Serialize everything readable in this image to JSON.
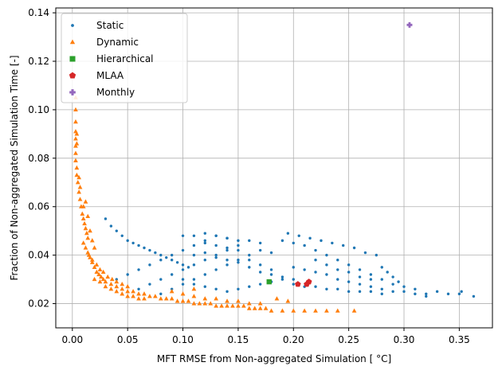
{
  "chart_data": {
    "type": "scatter",
    "xlabel": "MFT RMSE from Non-aggregated Simulation [$^\\circ$C]",
    "xlabel_display": "MFT RMSE from Non-aggregated Simulation [ °C]",
    "ylabel": "Fraction of Non-aggregated Simulation Time [-]",
    "xlim": [
      -0.015,
      0.38
    ],
    "ylim": [
      0.01,
      0.142
    ],
    "xticks": [
      0.0,
      0.05,
      0.1,
      0.15,
      0.2,
      0.25,
      0.3,
      0.35
    ],
    "xtick_labels": [
      "0.00",
      "0.05",
      "0.10",
      "0.15",
      "0.20",
      "0.25",
      "0.30",
      "0.35"
    ],
    "yticks": [
      0.02,
      0.04,
      0.06,
      0.08,
      0.1,
      0.12,
      0.14
    ],
    "ytick_labels": [
      "0.02",
      "0.04",
      "0.06",
      "0.08",
      "0.10",
      "0.12",
      "0.14"
    ],
    "grid": true,
    "legend_position": "top-left",
    "series": [
      {
        "name": "Static",
        "marker": "circle",
        "color": "#1f77b4",
        "points": [
          [
            0.03,
            0.055
          ],
          [
            0.035,
            0.052
          ],
          [
            0.04,
            0.05
          ],
          [
            0.045,
            0.048
          ],
          [
            0.05,
            0.046
          ],
          [
            0.055,
            0.045
          ],
          [
            0.06,
            0.044
          ],
          [
            0.065,
            0.043
          ],
          [
            0.07,
            0.042
          ],
          [
            0.075,
            0.041
          ],
          [
            0.08,
            0.04
          ],
          [
            0.085,
            0.039
          ],
          [
            0.09,
            0.038
          ],
          [
            0.095,
            0.037
          ],
          [
            0.1,
            0.036
          ],
          [
            0.105,
            0.035
          ],
          [
            0.04,
            0.03
          ],
          [
            0.05,
            0.032
          ],
          [
            0.06,
            0.034
          ],
          [
            0.07,
            0.036
          ],
          [
            0.08,
            0.038
          ],
          [
            0.09,
            0.04
          ],
          [
            0.1,
            0.042
          ],
          [
            0.11,
            0.044
          ],
          [
            0.12,
            0.046
          ],
          [
            0.13,
            0.048
          ],
          [
            0.14,
            0.047
          ],
          [
            0.15,
            0.046
          ],
          [
            0.06,
            0.026
          ],
          [
            0.07,
            0.028
          ],
          [
            0.08,
            0.03
          ],
          [
            0.09,
            0.032
          ],
          [
            0.1,
            0.034
          ],
          [
            0.11,
            0.036
          ],
          [
            0.12,
            0.038
          ],
          [
            0.13,
            0.04
          ],
          [
            0.14,
            0.042
          ],
          [
            0.15,
            0.044
          ],
          [
            0.16,
            0.046
          ],
          [
            0.17,
            0.045
          ],
          [
            0.08,
            0.024
          ],
          [
            0.09,
            0.026
          ],
          [
            0.1,
            0.028
          ],
          [
            0.11,
            0.03
          ],
          [
            0.12,
            0.032
          ],
          [
            0.13,
            0.034
          ],
          [
            0.14,
            0.036
          ],
          [
            0.15,
            0.038
          ],
          [
            0.16,
            0.04
          ],
          [
            0.17,
            0.042
          ],
          [
            0.18,
            0.041
          ],
          [
            0.1,
            0.048
          ],
          [
            0.11,
            0.048
          ],
          [
            0.12,
            0.049
          ],
          [
            0.13,
            0.048
          ],
          [
            0.14,
            0.047
          ],
          [
            0.12,
            0.045
          ],
          [
            0.13,
            0.044
          ],
          [
            0.14,
            0.043
          ],
          [
            0.15,
            0.042
          ],
          [
            0.16,
            0.038
          ],
          [
            0.17,
            0.036
          ],
          [
            0.18,
            0.034
          ],
          [
            0.11,
            0.04
          ],
          [
            0.12,
            0.041
          ],
          [
            0.13,
            0.039
          ],
          [
            0.14,
            0.038
          ],
          [
            0.15,
            0.037
          ],
          [
            0.16,
            0.035
          ],
          [
            0.17,
            0.033
          ],
          [
            0.18,
            0.032
          ],
          [
            0.19,
            0.031
          ],
          [
            0.2,
            0.03
          ],
          [
            0.1,
            0.03
          ],
          [
            0.11,
            0.028
          ],
          [
            0.12,
            0.027
          ],
          [
            0.13,
            0.026
          ],
          [
            0.14,
            0.025
          ],
          [
            0.15,
            0.026
          ],
          [
            0.16,
            0.027
          ],
          [
            0.17,
            0.028
          ],
          [
            0.18,
            0.029
          ],
          [
            0.19,
            0.03
          ],
          [
            0.2,
            0.045
          ],
          [
            0.21,
            0.044
          ],
          [
            0.22,
            0.042
          ],
          [
            0.23,
            0.04
          ],
          [
            0.24,
            0.038
          ],
          [
            0.25,
            0.036
          ],
          [
            0.26,
            0.034
          ],
          [
            0.27,
            0.032
          ],
          [
            0.28,
            0.03
          ],
          [
            0.29,
            0.028
          ],
          [
            0.2,
            0.035
          ],
          [
            0.21,
            0.034
          ],
          [
            0.22,
            0.033
          ],
          [
            0.23,
            0.032
          ],
          [
            0.24,
            0.03
          ],
          [
            0.25,
            0.029
          ],
          [
            0.26,
            0.028
          ],
          [
            0.27,
            0.027
          ],
          [
            0.28,
            0.026
          ],
          [
            0.29,
            0.025
          ],
          [
            0.2,
            0.028
          ],
          [
            0.21,
            0.027
          ],
          [
            0.22,
            0.027
          ],
          [
            0.23,
            0.026
          ],
          [
            0.24,
            0.026
          ],
          [
            0.25,
            0.025
          ],
          [
            0.26,
            0.025
          ],
          [
            0.27,
            0.025
          ],
          [
            0.28,
            0.024
          ],
          [
            0.3,
            0.025
          ],
          [
            0.31,
            0.024
          ],
          [
            0.32,
            0.024
          ],
          [
            0.33,
            0.025
          ],
          [
            0.34,
            0.024
          ],
          [
            0.35,
            0.024
          ],
          [
            0.352,
            0.025
          ],
          [
            0.363,
            0.023
          ],
          [
            0.3,
            0.027
          ],
          [
            0.31,
            0.026
          ],
          [
            0.32,
            0.023
          ],
          [
            0.19,
            0.046
          ],
          [
            0.195,
            0.049
          ],
          [
            0.205,
            0.048
          ],
          [
            0.215,
            0.047
          ],
          [
            0.225,
            0.046
          ],
          [
            0.235,
            0.045
          ],
          [
            0.245,
            0.044
          ],
          [
            0.255,
            0.043
          ],
          [
            0.265,
            0.041
          ],
          [
            0.275,
            0.04
          ],
          [
            0.28,
            0.035
          ],
          [
            0.285,
            0.033
          ],
          [
            0.29,
            0.031
          ],
          [
            0.295,
            0.029
          ],
          [
            0.27,
            0.03
          ],
          [
            0.26,
            0.031
          ],
          [
            0.25,
            0.033
          ],
          [
            0.24,
            0.034
          ],
          [
            0.23,
            0.036
          ],
          [
            0.22,
            0.038
          ]
        ]
      },
      {
        "name": "Dynamic",
        "marker": "triangle",
        "color": "#ff7f0e",
        "points": [
          [
            0.003,
            0.105
          ],
          [
            0.003,
            0.1
          ],
          [
            0.003,
            0.095
          ],
          [
            0.003,
            0.091
          ],
          [
            0.003,
            0.088
          ],
          [
            0.003,
            0.085
          ],
          [
            0.003,
            0.082
          ],
          [
            0.003,
            0.079
          ],
          [
            0.004,
            0.076
          ],
          [
            0.004,
            0.073
          ],
          [
            0.005,
            0.07
          ],
          [
            0.006,
            0.066
          ],
          [
            0.007,
            0.063
          ],
          [
            0.008,
            0.06
          ],
          [
            0.009,
            0.057
          ],
          [
            0.01,
            0.055
          ],
          [
            0.011,
            0.053
          ],
          [
            0.012,
            0.051
          ],
          [
            0.013,
            0.049
          ],
          [
            0.014,
            0.047
          ],
          [
            0.01,
            0.045
          ],
          [
            0.012,
            0.043
          ],
          [
            0.014,
            0.041
          ],
          [
            0.016,
            0.039
          ],
          [
            0.018,
            0.037
          ],
          [
            0.02,
            0.035
          ],
          [
            0.022,
            0.033
          ],
          [
            0.024,
            0.032
          ],
          [
            0.026,
            0.031
          ],
          [
            0.028,
            0.03
          ],
          [
            0.03,
            0.029
          ],
          [
            0.035,
            0.028
          ],
          [
            0.04,
            0.027
          ],
          [
            0.045,
            0.026
          ],
          [
            0.05,
            0.025
          ],
          [
            0.055,
            0.025
          ],
          [
            0.06,
            0.024
          ],
          [
            0.065,
            0.024
          ],
          [
            0.07,
            0.023
          ],
          [
            0.075,
            0.023
          ],
          [
            0.08,
            0.022
          ],
          [
            0.085,
            0.022
          ],
          [
            0.09,
            0.022
          ],
          [
            0.095,
            0.021
          ],
          [
            0.1,
            0.021
          ],
          [
            0.105,
            0.021
          ],
          [
            0.11,
            0.02
          ],
          [
            0.115,
            0.02
          ],
          [
            0.12,
            0.02
          ],
          [
            0.125,
            0.02
          ],
          [
            0.13,
            0.019
          ],
          [
            0.135,
            0.019
          ],
          [
            0.14,
            0.019
          ],
          [
            0.145,
            0.019
          ],
          [
            0.15,
            0.019
          ],
          [
            0.155,
            0.019
          ],
          [
            0.16,
            0.018
          ],
          [
            0.165,
            0.018
          ],
          [
            0.17,
            0.018
          ],
          [
            0.175,
            0.018
          ],
          [
            0.015,
            0.04
          ],
          [
            0.018,
            0.038
          ],
          [
            0.022,
            0.036
          ],
          [
            0.025,
            0.034
          ],
          [
            0.028,
            0.033
          ],
          [
            0.032,
            0.031
          ],
          [
            0.036,
            0.03
          ],
          [
            0.04,
            0.029
          ],
          [
            0.045,
            0.028
          ],
          [
            0.05,
            0.027
          ],
          [
            0.02,
            0.03
          ],
          [
            0.025,
            0.029
          ],
          [
            0.03,
            0.027
          ],
          [
            0.035,
            0.026
          ],
          [
            0.04,
            0.025
          ],
          [
            0.045,
            0.024
          ],
          [
            0.05,
            0.023
          ],
          [
            0.055,
            0.023
          ],
          [
            0.06,
            0.022
          ],
          [
            0.065,
            0.022
          ],
          [
            0.01,
            0.06
          ],
          [
            0.012,
            0.062
          ],
          [
            0.014,
            0.056
          ],
          [
            0.016,
            0.05
          ],
          [
            0.018,
            0.046
          ],
          [
            0.02,
            0.043
          ],
          [
            0.007,
            0.068
          ],
          [
            0.006,
            0.072
          ],
          [
            0.004,
            0.086
          ],
          [
            0.004,
            0.09
          ],
          [
            0.18,
            0.017
          ],
          [
            0.19,
            0.017
          ],
          [
            0.2,
            0.017
          ],
          [
            0.21,
            0.017
          ],
          [
            0.22,
            0.017
          ],
          [
            0.23,
            0.017
          ],
          [
            0.24,
            0.017
          ],
          [
            0.255,
            0.017
          ],
          [
            0.185,
            0.022
          ],
          [
            0.195,
            0.021
          ],
          [
            0.09,
            0.025
          ],
          [
            0.1,
            0.024
          ],
          [
            0.11,
            0.023
          ],
          [
            0.12,
            0.022
          ],
          [
            0.13,
            0.022
          ],
          [
            0.14,
            0.021
          ],
          [
            0.15,
            0.021
          ],
          [
            0.16,
            0.02
          ],
          [
            0.17,
            0.02
          ],
          [
            0.11,
            0.026
          ]
        ]
      },
      {
        "name": "Hierarchical",
        "marker": "square",
        "color": "#2ca02c",
        "points": [
          [
            0.178,
            0.029
          ]
        ]
      },
      {
        "name": "MLAA",
        "marker": "pentagon",
        "color": "#d62728",
        "points": [
          [
            0.204,
            0.028
          ],
          [
            0.212,
            0.028
          ],
          [
            0.214,
            0.029
          ]
        ]
      },
      {
        "name": "Monthly",
        "marker": "plus",
        "color": "#9467bd",
        "points": [
          [
            0.305,
            0.135
          ]
        ]
      }
    ]
  }
}
